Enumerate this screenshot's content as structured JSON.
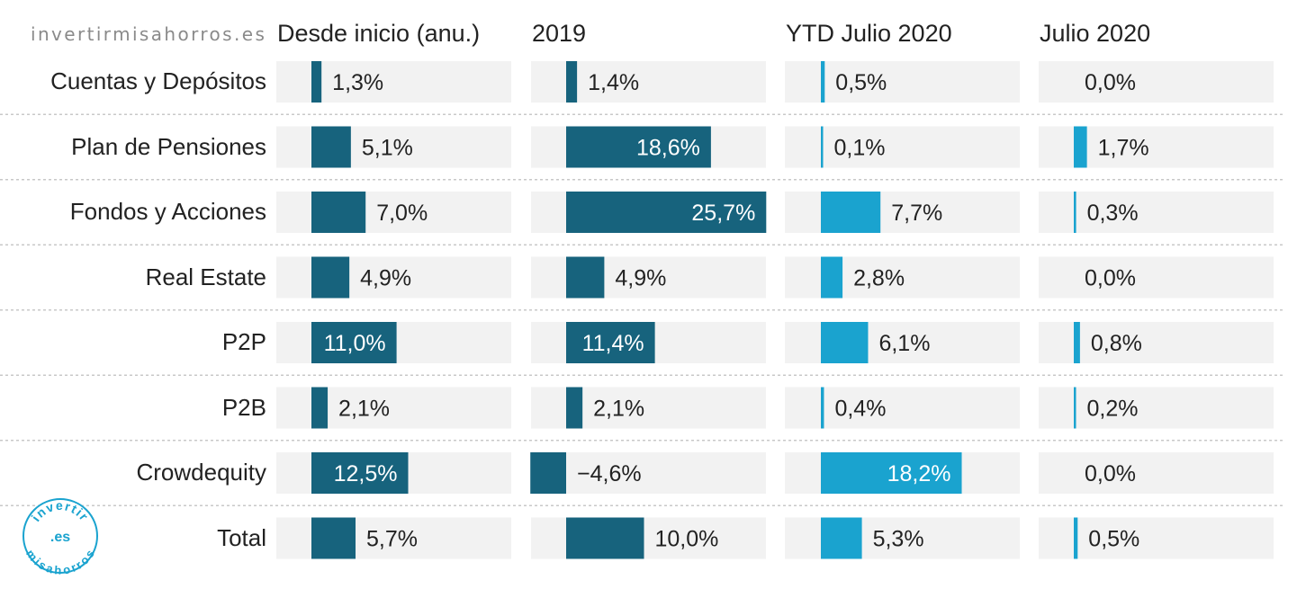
{
  "site_label": "invertirmisahorros.es",
  "logo": {
    "top": "invertir",
    "middle": ".es",
    "bottom": "misahorros",
    "color": "#1aa3cf"
  },
  "colors": {
    "dark": "#17637d",
    "light": "#1aa3cf",
    "track": "#f2f2f2",
    "divider": "#c8c8c8",
    "text": "#222222",
    "inside_text": "#ffffff"
  },
  "chart_data": {
    "type": "bar",
    "categories": [
      "Cuentas y Depósitos",
      "Plan de Pensiones",
      "Fondos y Acciones",
      "Real Estate",
      "P2P",
      "P2B",
      "Crowdequity",
      "Total"
    ],
    "series": [
      {
        "name": "Desde inicio (anu.)",
        "color": "#17637d",
        "range": [
          0,
          30
        ],
        "values": [
          1.3,
          5.1,
          7.0,
          4.9,
          11.0,
          2.1,
          12.5,
          5.7
        ],
        "labels": [
          "1,3%",
          "5,1%",
          "7,0%",
          "4,9%",
          "11,0%",
          "2,1%",
          "12,5%",
          "5,7%"
        ]
      },
      {
        "name": "2019",
        "color": "#17637d",
        "range": [
          -4.6,
          25.7
        ],
        "values": [
          1.4,
          18.6,
          25.7,
          4.9,
          11.4,
          2.1,
          -4.6,
          10.0
        ],
        "labels": [
          "1,4%",
          "18,6%",
          "25,7%",
          "4,9%",
          "11,4%",
          "2,1%",
          "−4,6%",
          "10,0%"
        ]
      },
      {
        "name": "YTD Julio 2020",
        "color": "#1aa3cf",
        "range": [
          0,
          22
        ],
        "values": [
          0.5,
          0.1,
          7.7,
          2.8,
          6.1,
          0.4,
          18.2,
          5.3
        ],
        "labels": [
          "0,5%",
          "0,1%",
          "7,7%",
          "2,8%",
          "6,1%",
          "0,4%",
          "18,2%",
          "5,3%"
        ]
      },
      {
        "name": "Julio 2020",
        "color": "#1aa3cf",
        "range": [
          0,
          10
        ],
        "values": [
          0.0,
          1.7,
          0.3,
          0.0,
          0.8,
          0.2,
          0.0,
          0.5
        ],
        "labels": [
          "0,0%",
          "1,7%",
          "0,3%",
          "0,0%",
          "0,8%",
          "0,2%",
          "0,0%",
          "0,5%"
        ]
      }
    ],
    "title": "",
    "xlabel": "",
    "ylabel": "",
    "grid": false,
    "legend": "none"
  }
}
